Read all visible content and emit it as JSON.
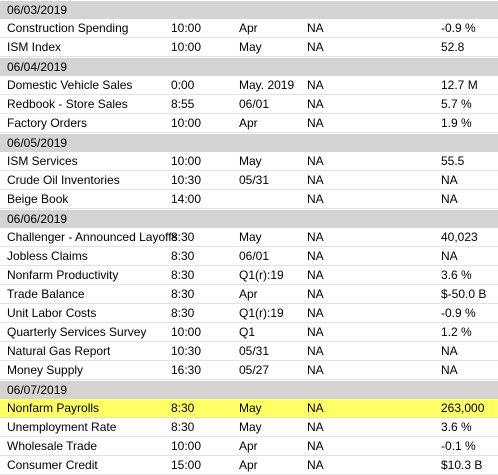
{
  "groups": [
    {
      "date": "06/03/2019",
      "events": [
        {
          "name": "Construction Spending",
          "time": "10:00",
          "period": "Apr",
          "forecast": "NA",
          "actual": "-0.9 %"
        },
        {
          "name": "ISM Index",
          "time": "10:00",
          "period": "May",
          "forecast": "NA",
          "actual": "52.8"
        }
      ]
    },
    {
      "date": "06/04/2019",
      "events": [
        {
          "name": "Domestic Vehicle Sales",
          "time": "0:00",
          "period": "May. 2019",
          "forecast": "NA",
          "actual": "12.7 M"
        },
        {
          "name": "Redbook - Store Sales",
          "time": "8:55",
          "period": "06/01",
          "forecast": "NA",
          "actual": "5.7 %"
        },
        {
          "name": "Factory Orders",
          "time": "10:00",
          "period": "Apr",
          "forecast": "NA",
          "actual": "1.9 %"
        }
      ]
    },
    {
      "date": "06/05/2019",
      "events": [
        {
          "name": "ISM Services",
          "time": "10:00",
          "period": "May",
          "forecast": "NA",
          "actual": "55.5"
        },
        {
          "name": "Crude Oil Inventories",
          "time": "10:30",
          "period": "05/31",
          "forecast": "NA",
          "actual": "NA"
        },
        {
          "name": "Beige Book",
          "time": "14:00",
          "period": "",
          "forecast": "NA",
          "actual": "NA"
        }
      ]
    },
    {
      "date": "06/06/2019",
      "events": [
        {
          "name": "Challenger - Announced Layoffs",
          "time": "8:30",
          "period": "May",
          "forecast": "NA",
          "actual": "40,023"
        },
        {
          "name": "Jobless Claims",
          "time": "8:30",
          "period": "06/01",
          "forecast": "NA",
          "actual": "NA"
        },
        {
          "name": "Nonfarm Productivity",
          "time": "8:30",
          "period": "Q1(r):19",
          "forecast": "NA",
          "actual": "3.6 %"
        },
        {
          "name": "Trade Balance",
          "time": "8:30",
          "period": "Apr",
          "forecast": "NA",
          "actual": "$-50.0 B"
        },
        {
          "name": "Unit Labor Costs",
          "time": "8:30",
          "period": "Q1(r):19",
          "forecast": "NA",
          "actual": "-0.9 %"
        },
        {
          "name": "Quarterly Services Survey",
          "time": "10:00",
          "period": "Q1",
          "forecast": "NA",
          "actual": "1.2 %"
        },
        {
          "name": "Natural Gas Report",
          "time": "10:30",
          "period": "05/31",
          "forecast": "NA",
          "actual": "NA"
        },
        {
          "name": "Money Supply",
          "time": "16:30",
          "period": "05/27",
          "forecast": "NA",
          "actual": "NA"
        }
      ]
    },
    {
      "date": "06/07/2019",
      "events": [
        {
          "name": "Nonfarm Payrolls",
          "time": "8:30",
          "period": "May",
          "forecast": "NA",
          "actual": "263,000",
          "highlight": true
        },
        {
          "name": "Unemployment Rate",
          "time": "8:30",
          "period": "May",
          "forecast": "NA",
          "actual": "3.6 %"
        },
        {
          "name": "Wholesale Trade",
          "time": "10:00",
          "period": "Apr",
          "forecast": "NA",
          "actual": "-0.1 %"
        },
        {
          "name": "Consumer Credit",
          "time": "15:00",
          "period": "Apr",
          "forecast": "NA",
          "actual": "$10.3 B"
        }
      ]
    }
  ],
  "colors": {
    "date_row_bg": "#d4d4d4",
    "highlight_bg": "#ffff66"
  }
}
